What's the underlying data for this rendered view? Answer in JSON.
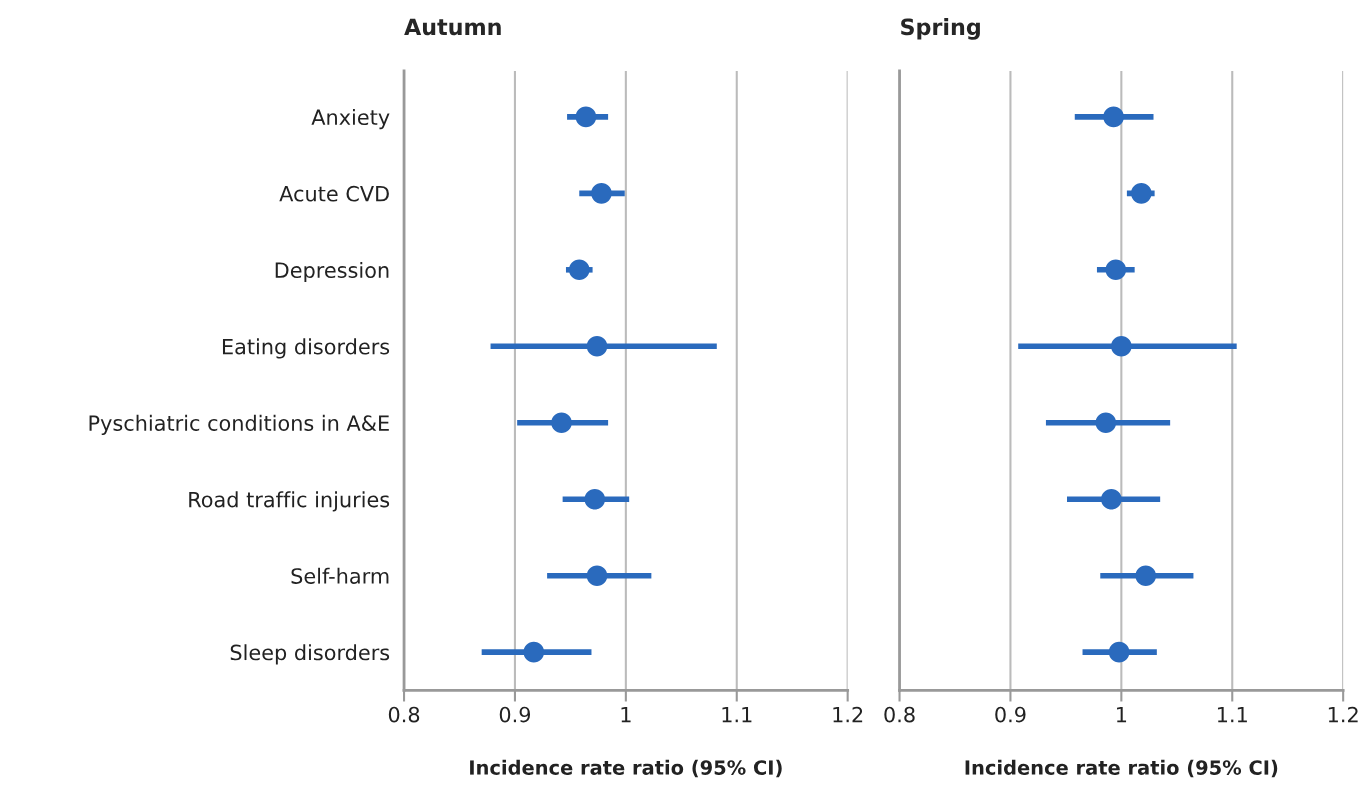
{
  "chart_data": [
    {
      "type": "scatter",
      "orientation": "horizontal",
      "title": "Autumn",
      "xlabel": "Incidence rate ratio (95% CI)",
      "categories": [
        "Anxiety",
        "Acute CVD",
        "Depression",
        "Eating disorders",
        "Pyschiatric conditions in A&E",
        "Road traffic injuries",
        "Self-harm",
        "Sleep disorders"
      ],
      "series": [
        {
          "color": "#2a6abd",
          "values": [
            0.964,
            0.978,
            0.958,
            0.974,
            0.942,
            0.972,
            0.974,
            0.917
          ],
          "errors": [
            [
              0.947,
              0.984
            ],
            [
              0.958,
              0.999
            ],
            [
              0.946,
              0.97
            ],
            [
              0.878,
              1.082
            ],
            [
              0.902,
              0.984
            ],
            [
              0.943,
              1.003
            ],
            [
              0.929,
              1.023
            ],
            [
              0.87,
              0.969
            ]
          ]
        }
      ],
      "xlim": [
        0.8,
        1.2
      ],
      "xticks": [
        0.8,
        0.9,
        1,
        1.1,
        1.2
      ],
      "grid": "x",
      "marker": "circle"
    },
    {
      "type": "scatter",
      "orientation": "horizontal",
      "title": "Spring",
      "xlabel": "Incidence rate ratio (95% CI)",
      "categories": [
        null,
        null,
        null,
        null,
        null,
        null,
        null,
        null
      ],
      "series": [
        {
          "color": "#2a6abd",
          "values": [
            0.993,
            1.018,
            0.995,
            1.0,
            0.986,
            0.991,
            1.022,
            0.998
          ],
          "errors": [
            [
              0.958,
              1.029
            ],
            [
              1.005,
              1.03
            ],
            [
              0.978,
              1.012
            ],
            [
              0.907,
              1.104
            ],
            [
              0.932,
              1.044
            ],
            [
              0.951,
              1.035
            ],
            [
              0.981,
              1.065
            ],
            [
              0.965,
              1.032
            ]
          ]
        }
      ],
      "xlim": [
        0.8,
        1.2
      ],
      "xticks": [
        0.8,
        0.9,
        1,
        1.1,
        1.2
      ],
      "grid": "x",
      "marker": "circle",
      "tick_labels": "x"
    }
  ]
}
